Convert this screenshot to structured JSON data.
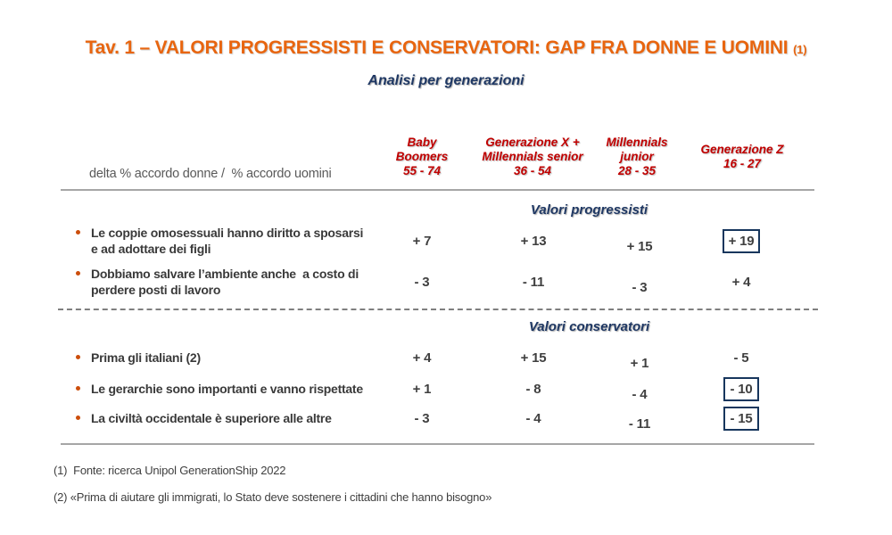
{
  "title": "Tav. 1 – VALORI PROGRESSISTI E CONSERVATORI: GAP FRA DONNE E UOMINI",
  "title_ref": "(1)",
  "subtitle": "Analisi per generazioni",
  "delta_label": "delta % accordo donne /  % accordo uomini",
  "colors": {
    "title_orange": "#E8650F",
    "header_red": "#C00000",
    "navy_blue": "#1F3864",
    "body_text": "#3A3A3A",
    "gray_label": "#595959",
    "bullet_orange": "#CC4E0C",
    "box_border_navy": "#17365D",
    "rule_gray": "#A6A6A6"
  },
  "columns": [
    {
      "lines": [
        "Baby",
        "Boomers",
        "55 - 74"
      ]
    },
    {
      "lines": [
        "Generazione X +",
        "Millennials senior",
        "36 - 54"
      ]
    },
    {
      "lines": [
        "Millennials",
        "junior",
        "28 - 35"
      ]
    },
    {
      "lines": [
        "Generazione Z",
        "16 - 27"
      ]
    }
  ],
  "table": {
    "sections": [
      {
        "heading": "Valori progressisti",
        "rows": [
          {
            "label_lines": [
              "Le coppie omosessuali hanno diritto a sposarsi",
              "e ad adottare dei figli"
            ],
            "cells": [
              {
                "text": "+ 7",
                "boxed": false
              },
              {
                "text": "+ 13",
                "boxed": false
              },
              {
                "text": "+ 15",
                "boxed": false
              },
              {
                "text": "+ 19",
                "boxed": true
              }
            ]
          },
          {
            "label_lines": [
              "Dobbiamo salvare l’ambiente anche  a costo di",
              "perdere posti di lavoro"
            ],
            "cells": [
              {
                "text": "- 3",
                "boxed": false
              },
              {
                "text": "- 11",
                "boxed": false
              },
              {
                "text": "- 3",
                "boxed": false
              },
              {
                "text": "+ 4",
                "boxed": false
              }
            ]
          }
        ]
      },
      {
        "heading": "Valori conservatori",
        "rows": [
          {
            "label_lines": [
              "Prima gli italiani (2)"
            ],
            "cells": [
              {
                "text": "+ 4",
                "boxed": false
              },
              {
                "text": "+ 15",
                "boxed": false
              },
              {
                "text": "+ 1",
                "boxed": false
              },
              {
                "text": "- 5",
                "boxed": false
              }
            ]
          },
          {
            "label_lines": [
              "Le gerarchie sono importanti e vanno rispettate"
            ],
            "cells": [
              {
                "text": "+ 1",
                "boxed": false
              },
              {
                "text": "- 8",
                "boxed": false
              },
              {
                "text": "- 4",
                "boxed": false
              },
              {
                "text": "- 10",
                "boxed": true
              }
            ]
          },
          {
            "label_lines": [
              "La civiltà occidentale è superiore alle altre"
            ],
            "cells": [
              {
                "text": "- 3",
                "boxed": false
              },
              {
                "text": "- 4",
                "boxed": false
              },
              {
                "text": "- 11",
                "boxed": false
              },
              {
                "text": "- 15",
                "boxed": true
              }
            ]
          }
        ]
      }
    ]
  },
  "footnotes": [
    "(1)  Fonte: ricerca Unipol GenerationShip 2022",
    "(2) «Prima di aiutare gli immigrati, lo Stato deve sostenere i cittadini che hanno bisogno»"
  ],
  "chart_data": {
    "type": "table",
    "title": "Tav. 1 – VALORI PROGRESSISTI E CONSERVATORI: GAP FRA DONNE E UOMINI (1)",
    "subtitle": "Analisi per generazioni",
    "metric": "delta % accordo donne / % accordo uomini",
    "columns": [
      "Baby Boomers 55-74",
      "Generazione X + Millennials senior 36-54",
      "Millennials junior 28-35",
      "Generazione Z 16-27"
    ],
    "groups": [
      {
        "name": "Valori progressisti",
        "rows": [
          {
            "statement": "Le coppie omosessuali hanno diritto a sposarsi e ad adottare dei figli",
            "values": [
              7,
              13,
              15,
              19
            ],
            "highlighted_value_column": "Generazione Z 16-27"
          },
          {
            "statement": "Dobbiamo salvare l’ambiente anche a costo di perdere posti di lavoro",
            "values": [
              -3,
              -11,
              -3,
              4
            ]
          }
        ]
      },
      {
        "name": "Valori conservatori",
        "rows": [
          {
            "statement": "Prima gli italiani (2)",
            "values": [
              4,
              15,
              1,
              -5
            ]
          },
          {
            "statement": "Le gerarchie sono importanti e vanno rispettate",
            "values": [
              1,
              -8,
              -4,
              -10
            ],
            "highlighted_value_column": "Generazione Z 16-27"
          },
          {
            "statement": "La civiltà occidentale è superiore alle altre",
            "values": [
              -3,
              -4,
              -11,
              -15
            ],
            "highlighted_value_column": "Generazione Z 16-27"
          }
        ]
      }
    ]
  }
}
